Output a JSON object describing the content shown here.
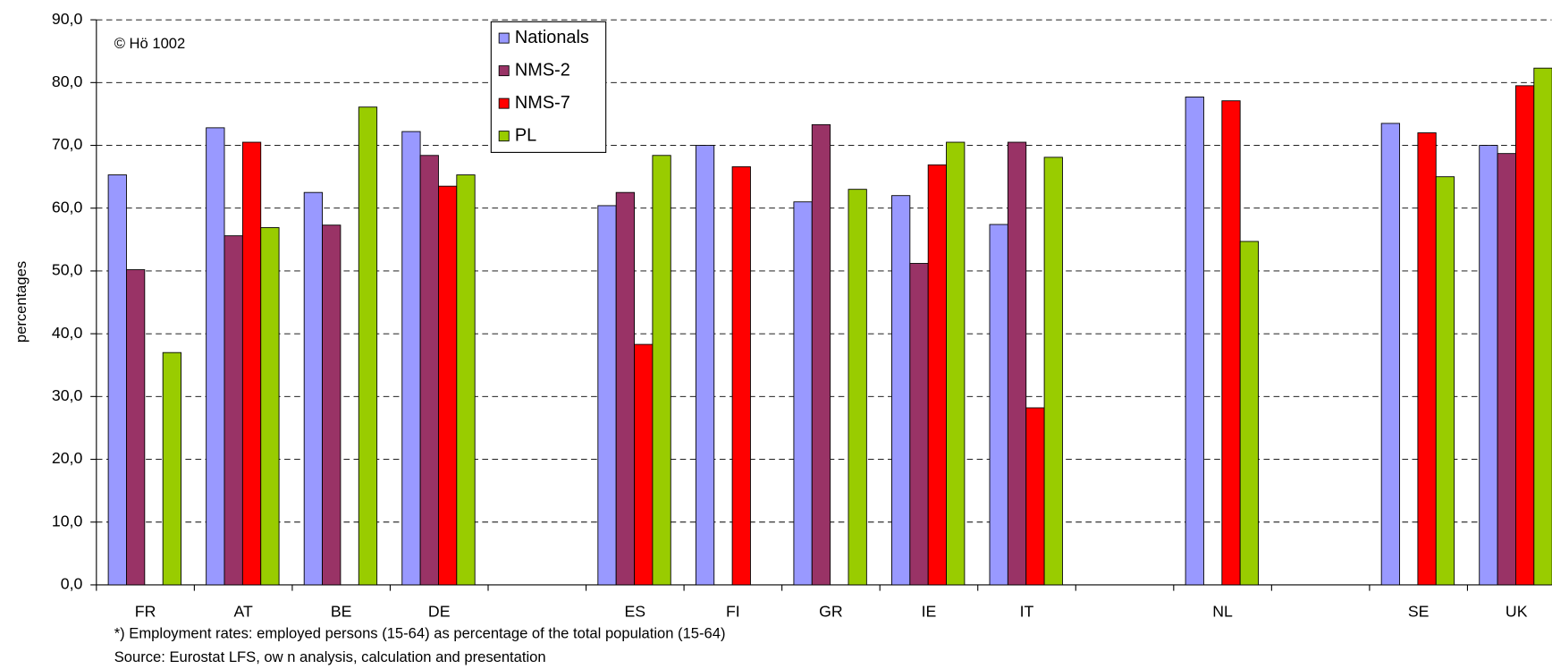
{
  "chart_data": {
    "type": "bar",
    "y_label": "percentages",
    "copyright": "© Hö 1002",
    "footnote": "*) Employment  rates:  employed persons (15-64) as percentage of the total population (15-64)",
    "source": "Source: Eurostat LFS, ow n analysis, calculation and presentation",
    "categories": [
      "FR",
      "AT",
      "BE",
      "DE",
      null,
      "ES",
      "FI",
      "GR",
      "IE",
      "IT",
      null,
      "NL",
      null,
      "SE",
      "UK"
    ],
    "series": [
      {
        "name": "Nationals",
        "color": "#9999ff",
        "values": [
          65.3,
          72.8,
          62.5,
          72.2,
          null,
          60.4,
          70.0,
          61.0,
          62.0,
          57.4,
          null,
          77.7,
          null,
          73.5,
          70.0
        ]
      },
      {
        "name": "NMS-2",
        "color": "#993366",
        "values": [
          50.2,
          55.6,
          57.3,
          68.4,
          null,
          62.5,
          null,
          73.3,
          51.2,
          70.5,
          null,
          null,
          null,
          null,
          68.7
        ]
      },
      {
        "name": "NMS-7",
        "color": "#ff0000",
        "values": [
          null,
          70.5,
          null,
          63.5,
          null,
          38.3,
          66.6,
          null,
          66.9,
          28.2,
          null,
          77.1,
          null,
          72.0,
          79.5
        ]
      },
      {
        "name": "PL",
        "color": "#99cc00",
        "values": [
          37.0,
          56.9,
          76.1,
          65.3,
          null,
          68.4,
          null,
          63.0,
          70.5,
          68.1,
          null,
          54.7,
          null,
          65.0,
          82.3
        ]
      }
    ],
    "ylim": [
      0,
      90
    ],
    "yticks": [
      {
        "value": 0,
        "label": "0,0"
      },
      {
        "value": 10,
        "label": "10,0"
      },
      {
        "value": 20,
        "label": "20,0"
      },
      {
        "value": 30,
        "label": "30,0"
      },
      {
        "value": 40,
        "label": "40,0"
      },
      {
        "value": 50,
        "label": "50,0"
      },
      {
        "value": 60,
        "label": "60,0"
      },
      {
        "value": 70,
        "label": "70,0"
      },
      {
        "value": 80,
        "label": "80,0"
      },
      {
        "value": 90,
        "label": "90,0"
      }
    ],
    "grid": true
  }
}
